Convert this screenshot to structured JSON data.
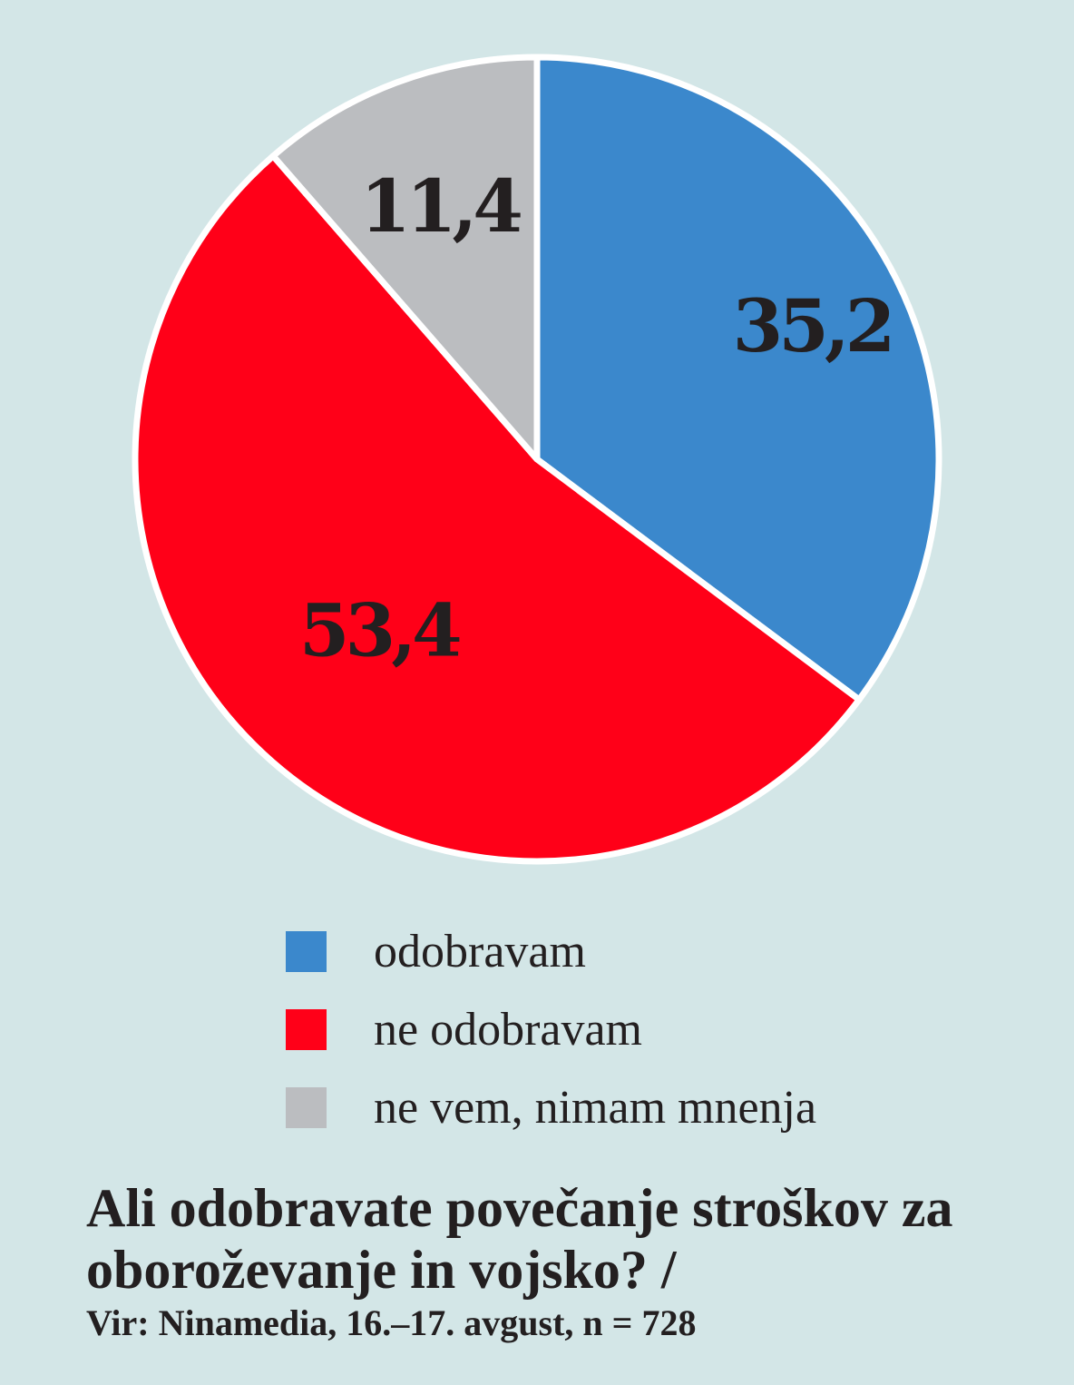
{
  "chart_data": {
    "type": "pie",
    "title": "Ali odobravate povečanje stroškov za oboroževanje in vojsko? /",
    "source": "Vir: Ninamedia, 16.–17. avgust, n = 728",
    "categories": [
      "odobravam",
      "ne odobravam",
      "ne vem, nimam mnenja"
    ],
    "values": [
      35.2,
      53.4,
      11.4
    ],
    "value_labels": [
      "35,2",
      "53,4",
      "11,4"
    ],
    "colors": [
      "#3b88cc",
      "#ff0018",
      "#bbbdc0"
    ],
    "start_angle": "12 o'clock",
    "direction": "clockwise",
    "legend_position": "below"
  },
  "colors": {
    "background": "#d3e6e7",
    "slice_border": "#ffffff",
    "text": "#231f20"
  }
}
